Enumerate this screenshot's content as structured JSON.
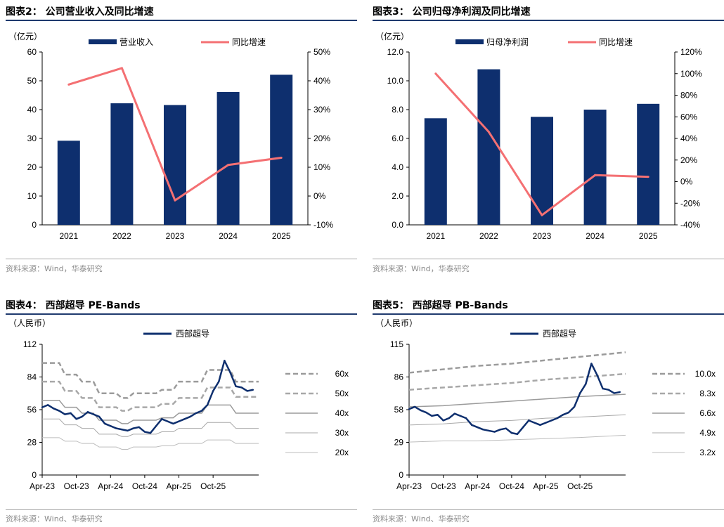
{
  "colors": {
    "bar": "#0e2f6e",
    "growth": "#f47073",
    "price": "#0e2f6e",
    "band_dark": "#9b9b9b",
    "band_mid": "#a8a8a8",
    "band_light": "#bdbdbd"
  },
  "charts": [
    {
      "id": "fig2",
      "title": "图表2：  公司营业收入及同比增速",
      "unit": "（亿元）",
      "source": "资料来源：Wind，华泰研究",
      "chart_data": {
        "type": "bar",
        "categories": [
          "2021",
          "2022",
          "2023",
          "2024",
          "2025"
        ],
        "series": [
          {
            "name": "营业收入",
            "type": "bar",
            "axis": "left",
            "values": [
              29.2,
              42.2,
              41.6,
              46.1,
              52.1
            ]
          },
          {
            "name": "同比增速",
            "type": "line",
            "axis": "right",
            "values": [
              38.7,
              44.4,
              -1.5,
              10.8,
              13.3
            ]
          }
        ],
        "left_axis": {
          "min": 0,
          "max": 60,
          "ticks": [
            "0",
            "10",
            "20",
            "30",
            "40",
            "50",
            "60"
          ]
        },
        "right_axis": {
          "min": -10,
          "max": 50,
          "ticks": [
            "-10%",
            "0%",
            "10%",
            "20%",
            "30%",
            "40%",
            "50%"
          ]
        },
        "legend_position": "top"
      }
    },
    {
      "id": "fig3",
      "title": "图表3：  公司归母净利润及同比增速",
      "unit": "（亿元）",
      "source": "资料来源：Wind，华泰研究",
      "chart_data": {
        "type": "bar",
        "categories": [
          "2021",
          "2022",
          "2023",
          "2024",
          "2025"
        ],
        "series": [
          {
            "name": "归母净利润",
            "type": "bar",
            "axis": "left",
            "values": [
              7.4,
              10.8,
              7.5,
              8.0,
              8.4
            ]
          },
          {
            "name": "同比增速",
            "type": "line",
            "axis": "right",
            "values": [
              100.0,
              46.0,
              -31.0,
              6.0,
              4.5
            ]
          }
        ],
        "left_axis": {
          "min": 0,
          "max": 12,
          "ticks": [
            "0.0",
            "2.0",
            "4.0",
            "6.0",
            "8.0",
            "10.0",
            "12.0"
          ]
        },
        "right_axis": {
          "min": -40,
          "max": 120,
          "ticks": [
            "-40%",
            "-20%",
            "0%",
            "20%",
            "40%",
            "60%",
            "80%",
            "100%",
            "120%"
          ]
        },
        "legend_position": "top"
      }
    },
    {
      "id": "fig4",
      "title": "图表4：  西部超导 PE-Bands",
      "unit": "（人民币）",
      "source": "资料来源：Wind、华泰研究",
      "chart_data": {
        "type": "line",
        "x_range": [
          "2023-04",
          "2026-01"
        ],
        "x_ticks": [
          "Apr-23",
          "Oct-23",
          "Apr-24",
          "Oct-24",
          "Apr-25",
          "Oct-25"
        ],
        "ylim": [
          0,
          112
        ],
        "y_ticks": [
          "0",
          "28",
          "56",
          "84",
          "112"
        ],
        "price_series": {
          "name": "西部超导",
          "values": [
            [
              0,
              58
            ],
            [
              1,
              60
            ],
            [
              2,
              57
            ],
            [
              3,
              55
            ],
            [
              4,
              52
            ],
            [
              5,
              53
            ],
            [
              6,
              48
            ],
            [
              7,
              50
            ],
            [
              8,
              54
            ],
            [
              9,
              52
            ],
            [
              10,
              50
            ],
            [
              11,
              44
            ],
            [
              12,
              42
            ],
            [
              13,
              40
            ],
            [
              14,
              39
            ],
            [
              15,
              38
            ],
            [
              16,
              40
            ],
            [
              17,
              41
            ],
            [
              18,
              37
            ],
            [
              19,
              36
            ],
            [
              20,
              42
            ],
            [
              21,
              48
            ],
            [
              22,
              46
            ],
            [
              23,
              44
            ],
            [
              24,
              46
            ],
            [
              25,
              48
            ],
            [
              26,
              50
            ],
            [
              27,
              53
            ],
            [
              28,
              55
            ],
            [
              29,
              60
            ],
            [
              30,
              72
            ],
            [
              31,
              80
            ],
            [
              32,
              98
            ],
            [
              33,
              88
            ],
            [
              34,
              76
            ],
            [
              35,
              75
            ],
            [
              36,
              72
            ],
            [
              37,
              73
            ]
          ]
        },
        "bands": [
          {
            "label": "60x",
            "values": [
              [
                0,
                96
              ],
              [
                3,
                96
              ],
              [
                4,
                86
              ],
              [
                6,
                86
              ],
              [
                7,
                80
              ],
              [
                9,
                80
              ],
              [
                10,
                70
              ],
              [
                13,
                70
              ],
              [
                14,
                66
              ],
              [
                15,
                66
              ],
              [
                16,
                70
              ],
              [
                20,
                70
              ],
              [
                21,
                73
              ],
              [
                23,
                73
              ],
              [
                24,
                80
              ],
              [
                28,
                80
              ],
              [
                29,
                90
              ],
              [
                33,
                90
              ],
              [
                34,
                80
              ],
              [
                38,
                80
              ]
            ]
          },
          {
            "label": "50x",
            "values": [
              [
                0,
                80
              ],
              [
                3,
                80
              ],
              [
                4,
                72
              ],
              [
                6,
                72
              ],
              [
                7,
                66
              ],
              [
                9,
                66
              ],
              [
                10,
                58
              ],
              [
                13,
                58
              ],
              [
                14,
                55
              ],
              [
                15,
                55
              ],
              [
                16,
                58
              ],
              [
                20,
                58
              ],
              [
                21,
                61
              ],
              [
                23,
                61
              ],
              [
                24,
                66
              ],
              [
                28,
                66
              ],
              [
                29,
                75
              ],
              [
                33,
                75
              ],
              [
                34,
                67
              ],
              [
                38,
                67
              ]
            ]
          },
          {
            "label": "40x",
            "values": [
              [
                0,
                64
              ],
              [
                3,
                64
              ],
              [
                4,
                58
              ],
              [
                6,
                58
              ],
              [
                7,
                53
              ],
              [
                9,
                53
              ],
              [
                10,
                47
              ],
              [
                13,
                47
              ],
              [
                14,
                44
              ],
              [
                15,
                44
              ],
              [
                16,
                47
              ],
              [
                20,
                47
              ],
              [
                21,
                49
              ],
              [
                23,
                49
              ],
              [
                24,
                53
              ],
              [
                28,
                53
              ],
              [
                29,
                60
              ],
              [
                33,
                60
              ],
              [
                34,
                53
              ],
              [
                38,
                53
              ]
            ]
          },
          {
            "label": "30x",
            "values": [
              [
                0,
                48
              ],
              [
                3,
                48
              ],
              [
                4,
                43
              ],
              [
                6,
                43
              ],
              [
                7,
                40
              ],
              [
                9,
                40
              ],
              [
                10,
                35
              ],
              [
                13,
                35
              ],
              [
                14,
                33
              ],
              [
                15,
                33
              ],
              [
                16,
                35
              ],
              [
                20,
                35
              ],
              [
                21,
                37
              ],
              [
                23,
                37
              ],
              [
                24,
                40
              ],
              [
                28,
                40
              ],
              [
                29,
                45
              ],
              [
                33,
                45
              ],
              [
                34,
                40
              ],
              [
                38,
                40
              ]
            ]
          },
          {
            "label": "20x",
            "values": [
              [
                0,
                32
              ],
              [
                3,
                32
              ],
              [
                4,
                29
              ],
              [
                6,
                29
              ],
              [
                7,
                27
              ],
              [
                9,
                27
              ],
              [
                10,
                24
              ],
              [
                13,
                24
              ],
              [
                14,
                22
              ],
              [
                15,
                22
              ],
              [
                16,
                24
              ],
              [
                20,
                24
              ],
              [
                21,
                25
              ],
              [
                23,
                25
              ],
              [
                24,
                27
              ],
              [
                28,
                27
              ],
              [
                29,
                30
              ],
              [
                33,
                30
              ],
              [
                34,
                27
              ],
              [
                38,
                27
              ]
            ]
          }
        ]
      }
    },
    {
      "id": "fig5",
      "title": "图表5：  西部超导 PB-Bands",
      "unit": "（人民币）",
      "source": "资料来源：Wind、华泰研究",
      "chart_data": {
        "type": "line",
        "x_range": [
          "2023-04",
          "2026-01"
        ],
        "x_ticks": [
          "Apr-23",
          "Oct-23",
          "Apr-24",
          "Oct-24",
          "Apr-25",
          "Oct-25"
        ],
        "ylim": [
          0,
          115
        ],
        "y_ticks": [
          "0",
          "29",
          "58",
          "86",
          "115"
        ],
        "price_series": {
          "name": "西部超导",
          "values": [
            [
              0,
              58
            ],
            [
              1,
              60
            ],
            [
              2,
              57
            ],
            [
              3,
              55
            ],
            [
              4,
              52
            ],
            [
              5,
              53
            ],
            [
              6,
              48
            ],
            [
              7,
              50
            ],
            [
              8,
              54
            ],
            [
              9,
              52
            ],
            [
              10,
              50
            ],
            [
              11,
              44
            ],
            [
              12,
              42
            ],
            [
              13,
              40
            ],
            [
              14,
              39
            ],
            [
              15,
              38
            ],
            [
              16,
              40
            ],
            [
              17,
              41
            ],
            [
              18,
              37
            ],
            [
              19,
              36
            ],
            [
              20,
              42
            ],
            [
              21,
              48
            ],
            [
              22,
              46
            ],
            [
              23,
              44
            ],
            [
              24,
              46
            ],
            [
              25,
              48
            ],
            [
              26,
              50
            ],
            [
              27,
              53
            ],
            [
              28,
              55
            ],
            [
              29,
              60
            ],
            [
              30,
              72
            ],
            [
              31,
              80
            ],
            [
              32,
              98
            ],
            [
              33,
              88
            ],
            [
              34,
              76
            ],
            [
              35,
              75
            ],
            [
              36,
              72
            ],
            [
              37,
              73
            ]
          ]
        },
        "bands": [
          {
            "label": "10.0x",
            "values": [
              [
                0,
                90
              ],
              [
                6,
                93
              ],
              [
                12,
                96
              ],
              [
                18,
                98
              ],
              [
                24,
                101
              ],
              [
                30,
                104
              ],
              [
                38,
                108
              ]
            ]
          },
          {
            "label": "8.3x",
            "values": [
              [
                0,
                75
              ],
              [
                6,
                77
              ],
              [
                12,
                79
              ],
              [
                18,
                81
              ],
              [
                24,
                84
              ],
              [
                30,
                86
              ],
              [
                38,
                89
              ]
            ]
          },
          {
            "label": "6.6x",
            "values": [
              [
                0,
                60
              ],
              [
                6,
                61
              ],
              [
                12,
                63
              ],
              [
                18,
                65
              ],
              [
                24,
                67
              ],
              [
                30,
                69
              ],
              [
                38,
                71
              ]
            ]
          },
          {
            "label": "4.9x",
            "values": [
              [
                0,
                44
              ],
              [
                6,
                45
              ],
              [
                12,
                47
              ],
              [
                18,
                48
              ],
              [
                24,
                50
              ],
              [
                30,
                51
              ],
              [
                38,
                53
              ]
            ]
          },
          {
            "label": "3.2x",
            "values": [
              [
                0,
                29
              ],
              [
                6,
                30
              ],
              [
                12,
                30
              ],
              [
                18,
                31
              ],
              [
                24,
                32
              ],
              [
                30,
                33
              ],
              [
                38,
                35
              ]
            ]
          }
        ]
      }
    }
  ]
}
